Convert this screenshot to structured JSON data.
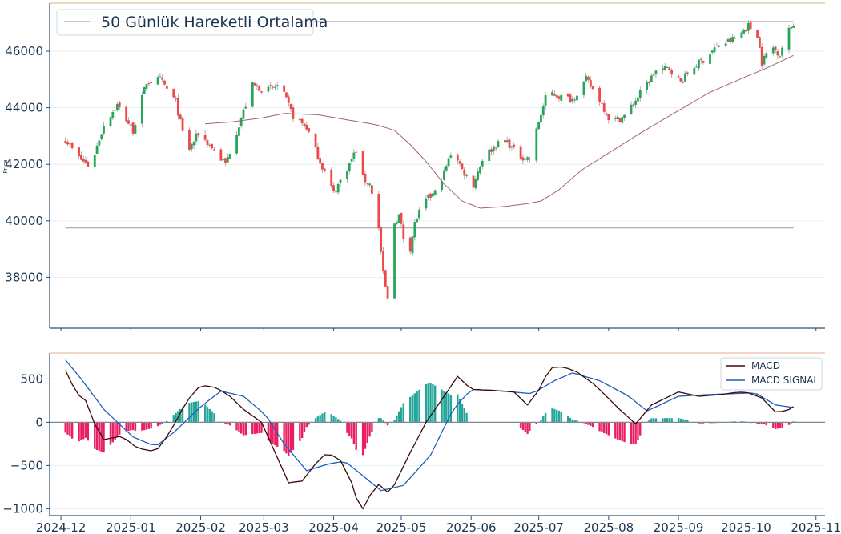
{
  "chart_data": [
    {
      "type": "candlestick",
      "ylabel": "Price",
      "ylim": [
        36200,
        47700
      ],
      "yticks": [
        38000,
        40000,
        42000,
        44000,
        46000
      ],
      "colors": {
        "up": "#26a65b",
        "down": "#f04848",
        "wick": "#9a9a9a",
        "ma": "#a0607a",
        "hline": "#b59aaa"
      },
      "legend": {
        "label": "50 Günlük Hareketli Ortalama",
        "position": "top-left"
      },
      "horizontal_lines": [
        47050,
        39750
      ],
      "ma_label": "50 Günlük Hareketli Ortalama",
      "ma_anchors": [
        [
          "2025-02-01",
          43420
        ],
        [
          "2025-02-15",
          43500
        ],
        [
          "2025-03-01",
          43650
        ],
        [
          "2025-03-10",
          43800
        ],
        [
          "2025-03-25",
          43750
        ],
        [
          "2025-04-05",
          43600
        ],
        [
          "2025-04-20",
          43400
        ],
        [
          "2025-04-28",
          43200
        ],
        [
          "2025-05-05",
          42700
        ],
        [
          "2025-05-12",
          42100
        ],
        [
          "2025-05-20",
          41300
        ],
        [
          "2025-05-28",
          40700
        ],
        [
          "2025-06-05",
          40450
        ],
        [
          "2025-06-15",
          40500
        ],
        [
          "2025-06-25",
          40600
        ],
        [
          "2025-07-02",
          40700
        ],
        [
          "2025-07-10",
          41100
        ],
        [
          "2025-07-20",
          41800
        ],
        [
          "2025-08-01",
          42400
        ],
        [
          "2025-08-15",
          43100
        ],
        [
          "2025-09-01",
          43900
        ],
        [
          "2025-09-15",
          44550
        ],
        [
          "2025-10-01",
          45100
        ],
        [
          "2025-10-10",
          45400
        ],
        [
          "2025-10-22",
          45850
        ]
      ],
      "close_anchors": [
        [
          "2024-12-03",
          42900
        ],
        [
          "2024-12-08",
          42300
        ],
        [
          "2024-12-14",
          41900
        ],
        [
          "2024-12-20",
          43400
        ],
        [
          "2024-12-26",
          44100
        ],
        [
          "2025-01-02",
          43200
        ],
        [
          "2025-01-08",
          44900
        ],
        [
          "2025-01-14",
          45000
        ],
        [
          "2025-01-21",
          44200
        ],
        [
          "2025-01-26",
          42400
        ],
        [
          "2025-01-31",
          43100
        ],
        [
          "2025-02-06",
          42600
        ],
        [
          "2025-02-12",
          42000
        ],
        [
          "2025-02-18",
          43400
        ],
        [
          "2025-02-24",
          44800
        ],
        [
          "2025-03-02",
          44600
        ],
        [
          "2025-03-08",
          44800
        ],
        [
          "2025-03-14",
          43700
        ],
        [
          "2025-03-20",
          43300
        ],
        [
          "2025-03-26",
          42100
        ],
        [
          "2025-04-01",
          41000
        ],
        [
          "2025-04-06",
          41700
        ],
        [
          "2025-04-11",
          42500
        ],
        [
          "2025-04-14",
          41500
        ],
        [
          "2025-04-17",
          41300
        ],
        [
          "2025-04-20",
          40500
        ],
        [
          "2025-04-23",
          38100
        ],
        [
          "2025-04-25",
          37200
        ],
        [
          "2025-04-27",
          39800
        ],
        [
          "2025-04-30",
          40200
        ],
        [
          "2025-05-04",
          38600
        ],
        [
          "2025-05-07",
          39900
        ],
        [
          "2025-05-10",
          40500
        ],
        [
          "2025-05-13",
          40800
        ],
        [
          "2025-05-16",
          41000
        ],
        [
          "2025-05-20",
          41700
        ],
        [
          "2025-05-24",
          42600
        ],
        [
          "2025-05-28",
          41800
        ],
        [
          "2025-06-02",
          41300
        ],
        [
          "2025-06-06",
          42200
        ],
        [
          "2025-06-12",
          42700
        ],
        [
          "2025-06-17",
          42800
        ],
        [
          "2025-06-22",
          42300
        ],
        [
          "2025-06-27",
          42200
        ],
        [
          "2025-07-01",
          43500
        ],
        [
          "2025-07-05",
          44600
        ],
        [
          "2025-07-10",
          44400
        ],
        [
          "2025-07-16",
          44300
        ],
        [
          "2025-07-22",
          45000
        ],
        [
          "2025-07-28",
          44300
        ],
        [
          "2025-08-02",
          43500
        ],
        [
          "2025-08-08",
          43700
        ],
        [
          "2025-08-15",
          44500
        ],
        [
          "2025-08-22",
          45300
        ],
        [
          "2025-08-28",
          45400
        ],
        [
          "2025-09-02",
          44900
        ],
        [
          "2025-09-07",
          45400
        ],
        [
          "2025-09-12",
          45700
        ],
        [
          "2025-09-17",
          46100
        ],
        [
          "2025-09-22",
          46300
        ],
        [
          "2025-09-27",
          46500
        ],
        [
          "2025-10-02",
          46900
        ],
        [
          "2025-10-06",
          46600
        ],
        [
          "2025-10-08",
          45600
        ],
        [
          "2025-10-12",
          46200
        ],
        [
          "2025-10-16",
          45900
        ],
        [
          "2025-10-19",
          46600
        ],
        [
          "2025-10-22",
          47000
        ]
      ]
    },
    {
      "type": "macd",
      "ylim": [
        -1080,
        800
      ],
      "yticks": [
        -1000,
        -500,
        0,
        500
      ],
      "colors": {
        "macd": "#3a0a0a",
        "signal": "#1f5fbf",
        "hist_pos": "#26a69a",
        "hist_neg": "#e91e63",
        "zero": "#7a8a9a"
      },
      "legend": {
        "position": "top-right",
        "entries": [
          "MACD",
          "MACD SIGNAL"
        ]
      },
      "macd_anchors": [
        [
          "2024-12-03",
          600
        ],
        [
          "2024-12-08",
          330
        ],
        [
          "2024-12-12",
          250
        ],
        [
          "2024-12-16",
          -20
        ],
        [
          "2024-12-20",
          -200
        ],
        [
          "2024-12-28",
          -160
        ],
        [
          "2025-01-04",
          -300
        ],
        [
          "2025-01-12",
          -340
        ],
        [
          "2025-01-18",
          -130
        ],
        [
          "2025-01-26",
          250
        ],
        [
          "2025-02-01",
          430
        ],
        [
          "2025-02-08",
          400
        ],
        [
          "2025-02-14",
          300
        ],
        [
          "2025-02-20",
          150
        ],
        [
          "2025-02-28",
          0
        ],
        [
          "2025-03-06",
          -350
        ],
        [
          "2025-03-12",
          -700
        ],
        [
          "2025-03-18",
          -680
        ],
        [
          "2025-03-24",
          -480
        ],
        [
          "2025-03-29",
          -350
        ],
        [
          "2025-04-04",
          -440
        ],
        [
          "2025-04-09",
          -700
        ],
        [
          "2025-04-13",
          -1050
        ],
        [
          "2025-04-17",
          -850
        ],
        [
          "2025-04-21",
          -720
        ],
        [
          "2025-04-26",
          -830
        ],
        [
          "2025-05-04",
          -400
        ],
        [
          "2025-05-12",
          0
        ],
        [
          "2025-05-20",
          300
        ],
        [
          "2025-05-26",
          530
        ],
        [
          "2025-06-01",
          380
        ],
        [
          "2025-06-10",
          370
        ],
        [
          "2025-06-20",
          350
        ],
        [
          "2025-06-26",
          200
        ],
        [
          "2025-07-01",
          370
        ],
        [
          "2025-07-06",
          630
        ],
        [
          "2025-07-12",
          640
        ],
        [
          "2025-07-18",
          580
        ],
        [
          "2025-07-26",
          430
        ],
        [
          "2025-08-05",
          170
        ],
        [
          "2025-08-13",
          -20
        ],
        [
          "2025-08-20",
          200
        ],
        [
          "2025-09-01",
          350
        ],
        [
          "2025-09-10",
          300
        ],
        [
          "2025-09-20",
          320
        ],
        [
          "2025-09-28",
          350
        ],
        [
          "2025-10-02",
          340
        ],
        [
          "2025-10-08",
          280
        ],
        [
          "2025-10-14",
          120
        ],
        [
          "2025-10-19",
          130
        ],
        [
          "2025-10-22",
          180
        ]
      ],
      "signal_anchors": [
        [
          "2024-12-03",
          720
        ],
        [
          "2024-12-10",
          500
        ],
        [
          "2024-12-20",
          150
        ],
        [
          "2025-01-02",
          -170
        ],
        [
          "2025-01-12",
          -280
        ],
        [
          "2025-01-20",
          -120
        ],
        [
          "2025-02-01",
          180
        ],
        [
          "2025-02-10",
          360
        ],
        [
          "2025-02-20",
          300
        ],
        [
          "2025-03-02",
          80
        ],
        [
          "2025-03-10",
          -250
        ],
        [
          "2025-03-20",
          -560
        ],
        [
          "2025-03-30",
          -480
        ],
        [
          "2025-04-06",
          -450
        ],
        [
          "2025-04-14",
          -620
        ],
        [
          "2025-04-22",
          -790
        ],
        [
          "2025-05-02",
          -730
        ],
        [
          "2025-05-14",
          -380
        ],
        [
          "2025-05-24",
          150
        ],
        [
          "2025-06-01",
          380
        ],
        [
          "2025-06-15",
          360
        ],
        [
          "2025-06-28",
          330
        ],
        [
          "2025-07-08",
          480
        ],
        [
          "2025-07-16",
          570
        ],
        [
          "2025-07-28",
          480
        ],
        [
          "2025-08-10",
          300
        ],
        [
          "2025-08-18",
          130
        ],
        [
          "2025-09-01",
          300
        ],
        [
          "2025-09-15",
          320
        ],
        [
          "2025-10-05",
          340
        ],
        [
          "2025-10-14",
          200
        ],
        [
          "2025-10-22",
          170
        ]
      ]
    }
  ],
  "xaxis": {
    "range": [
      "2024-11-26",
      "2025-11-05"
    ],
    "ticks": [
      "2024-12",
      "2025-01",
      "2025-02",
      "2025-03",
      "2025-04",
      "2025-05",
      "2025-06",
      "2025-07",
      "2025-08",
      "2025-09",
      "2025-10",
      "2025-11"
    ]
  }
}
